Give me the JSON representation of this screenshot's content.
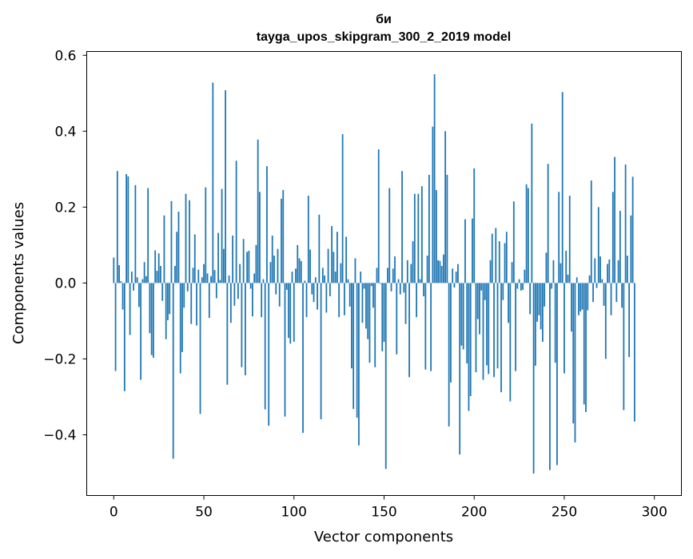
{
  "chart_data": {
    "type": "bar",
    "title_lines": [
      "би",
      "tayga_upos_skipgram_300_2_2019 model"
    ],
    "xlabel": "Vector components",
    "ylabel": "Components values",
    "xlim": [
      -15,
      315
    ],
    "ylim": [
      -0.56,
      0.61
    ],
    "xticks": [
      0,
      50,
      100,
      150,
      200,
      250,
      300
    ],
    "xtick_labels": [
      "0",
      "50",
      "100",
      "150",
      "200",
      "250",
      "300"
    ],
    "yticks": [
      -0.4,
      -0.2,
      0.0,
      0.2,
      0.4,
      0.6
    ],
    "ytick_labels": [
      "−0.4",
      "−0.2",
      "0.0",
      "0.2",
      "0.4",
      "0.6"
    ],
    "bar_color": "#1f77b4",
    "grid": false,
    "values": [
      0.067,
      -0.232,
      0.295,
      0.047,
      0.005,
      -0.07,
      -0.285,
      0.287,
      0.281,
      -0.137,
      0.03,
      -0.02,
      0.258,
      0.015,
      -0.063,
      -0.255,
      0.01,
      0.055,
      0.018,
      0.25,
      -0.132,
      -0.19,
      -0.197,
      0.086,
      0.032,
      0.078,
      0.045,
      -0.047,
      0.178,
      -0.148,
      -0.098,
      -0.082,
      0.216,
      -0.463,
      0.045,
      0.135,
      0.188,
      -0.238,
      -0.182,
      -0.065,
      0.235,
      -0.022,
      0.218,
      -0.108,
      0.04,
      0.128,
      -0.112,
      0.035,
      -0.345,
      0.015,
      0.05,
      0.252,
      0.025,
      -0.092,
      0.018,
      0.528,
      0.034,
      -0.04,
      0.132,
      0.008,
      0.248,
      0.09,
      0.508,
      -0.268,
      0.02,
      -0.105,
      0.125,
      -0.06,
      0.322,
      -0.042,
      0.05,
      -0.222,
      0.116,
      -0.243,
      0.082,
      0.085,
      -0.015,
      -0.088,
      0.025,
      0.1,
      0.378,
      0.24,
      -0.09,
      0.01,
      -0.333,
      0.308,
      -0.376,
      0.055,
      0.125,
      0.072,
      -0.03,
      0.09,
      -0.062,
      0.222,
      0.245,
      -0.352,
      -0.018,
      -0.145,
      -0.16,
      0.03,
      -0.155,
      0.038,
      0.1,
      0.065,
      0.058,
      -0.395,
      0.006,
      -0.09,
      0.23,
      0.088,
      -0.03,
      -0.05,
      0.015,
      -0.07,
      0.18,
      -0.359,
      0.04,
      0.02,
      -0.078,
      0.09,
      -0.035,
      0.15,
      0.082,
      0.03,
      0.135,
      -0.09,
      0.052,
      0.392,
      -0.085,
      0.122,
      0.01,
      -0.062,
      -0.225,
      -0.332,
      0.065,
      -0.355,
      -0.428,
      0.03,
      -0.105,
      -0.015,
      -0.12,
      -0.148,
      -0.21,
      -0.008,
      -0.065,
      -0.222,
      0.04,
      0.352,
      -0.002,
      -0.18,
      -0.155,
      -0.49,
      0.04,
      0.25,
      -0.022,
      0.038,
      0.07,
      -0.188,
      0.01,
      -0.03,
      0.295,
      -0.025,
      -0.108,
      0.06,
      -0.248,
      0.05,
      0.11,
      0.235,
      -0.09,
      0.235,
      0.01,
      0.255,
      -0.035,
      -0.228,
      0.072,
      0.285,
      -0.232,
      0.412,
      0.55,
      0.245,
      0.06,
      0.058,
      0.045,
      0.075,
      0.4,
      0.285,
      -0.378,
      -0.262,
      0.038,
      -0.012,
      0.03,
      0.05,
      -0.452,
      -0.165,
      -0.175,
      0.168,
      -0.212,
      -0.337,
      -0.298,
      0.17,
      0.302,
      -0.235,
      -0.095,
      -0.135,
      -0.02,
      -0.255,
      -0.045,
      -0.217,
      -0.24,
      0.06,
      0.13,
      -0.248,
      0.145,
      -0.225,
      0.11,
      -0.288,
      -0.045,
      0.105,
      0.135,
      -0.105,
      -0.312,
      0.055,
      0.215,
      -0.232,
      -0.015,
      0.01,
      -0.02,
      -0.018,
      0.035,
      0.26,
      0.25,
      -0.082,
      0.42,
      -0.502,
      -0.218,
      -0.102,
      -0.085,
      -0.122,
      -0.155,
      -0.062,
      0.08,
      0.314,
      -0.493,
      -0.015,
      0.06,
      -0.21,
      -0.48,
      0.24,
      0.052,
      0.503,
      -0.238,
      0.085,
      0.022,
      0.23,
      -0.128,
      -0.37,
      -0.42,
      0.015,
      -0.085,
      -0.075,
      -0.07,
      -0.32,
      -0.34,
      -0.072,
      0.02,
      0.27,
      -0.05,
      0.065,
      -0.013,
      0.2,
      0.07,
      0.01,
      -0.06,
      -0.2,
      0.05,
      0.062,
      -0.085,
      0.24,
      0.332,
      -0.05,
      0.06,
      0.19,
      -0.065,
      -0.335,
      0.312,
      0.072,
      -0.195,
      0.178,
      0.28,
      -0.365
    ]
  }
}
